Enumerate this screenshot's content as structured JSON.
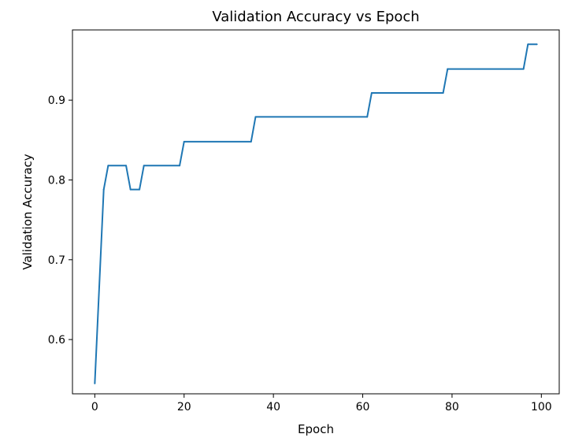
{
  "chart_data": {
    "type": "line",
    "title": "Validation Accuracy vs Epoch",
    "xlabel": "Epoch",
    "ylabel": "Validation Accuracy",
    "xlim": [
      -5,
      104
    ],
    "ylim": [
      0.532,
      0.988
    ],
    "xticks": [
      0,
      20,
      40,
      60,
      80,
      100
    ],
    "xtick_labels": [
      "0",
      "20",
      "40",
      "60",
      "80",
      "100"
    ],
    "yticks": [
      0.6,
      0.7,
      0.8,
      0.9
    ],
    "ytick_labels": [
      "0.6",
      "0.7",
      "0.8",
      "0.9"
    ],
    "grid": false,
    "line_color": "#1f77b4",
    "series": [
      {
        "x": [
          0,
          2,
          3,
          7,
          8,
          10,
          11,
          19,
          20,
          35,
          36,
          61,
          62,
          78,
          79,
          96,
          97,
          99
        ],
        "y": [
          0.545,
          0.788,
          0.818,
          0.818,
          0.788,
          0.788,
          0.818,
          0.818,
          0.848,
          0.848,
          0.879,
          0.879,
          0.909,
          0.909,
          0.939,
          0.939,
          0.97,
          0.97
        ]
      }
    ]
  }
}
